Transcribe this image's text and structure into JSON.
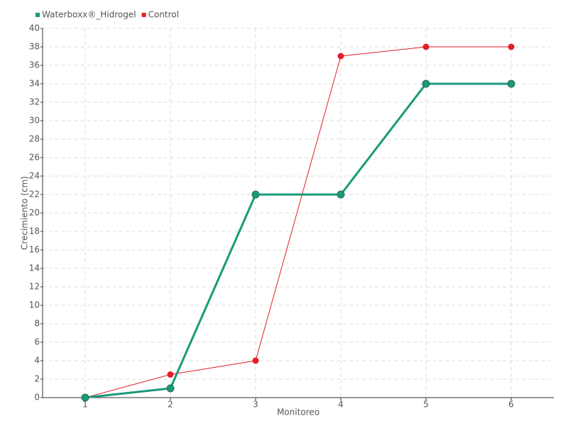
{
  "chart_data": {
    "type": "line",
    "x_label": "Monitoreo",
    "y_label": "Crecimiento (cm)",
    "categories": [
      "1",
      "2",
      "3",
      "4",
      "5",
      "6"
    ],
    "series": [
      {
        "name": "Waterboxx®_Hidrogel",
        "color": "#1a9a7a",
        "values": [
          0,
          1,
          22,
          22,
          34,
          34
        ]
      },
      {
        "name": "Control",
        "color": "#e31e2a",
        "values": [
          0,
          2.5,
          4,
          37,
          38,
          38
        ]
      }
    ],
    "ylim": [
      0,
      40
    ],
    "yticks": [
      0,
      2,
      4,
      6,
      8,
      10,
      12,
      14,
      16,
      18,
      20,
      22,
      24,
      26,
      28,
      30,
      32,
      34,
      36,
      38,
      40
    ],
    "grid": true,
    "legend": "top-left"
  }
}
